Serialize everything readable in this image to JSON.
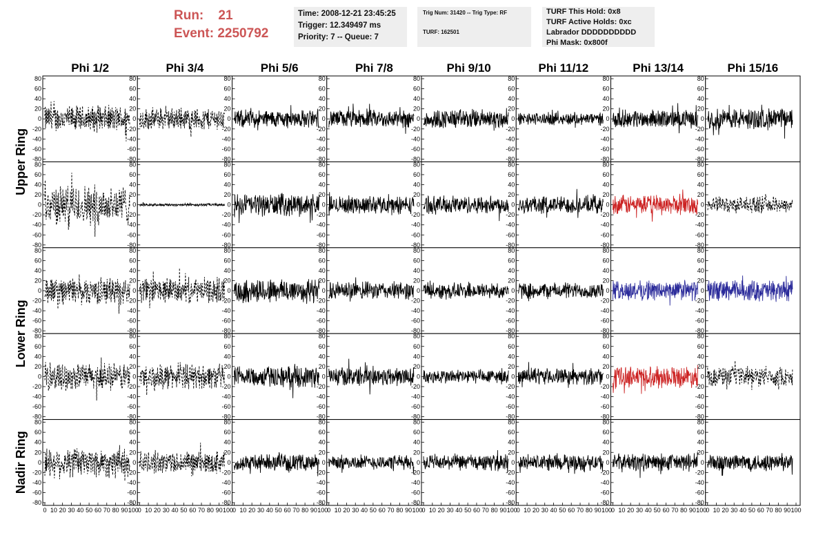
{
  "run": {
    "run_label": "Run:",
    "run_value": "21",
    "event_label": "Event:",
    "event_value": "2250792"
  },
  "info_box_1": {
    "time": "Time: 2008-12-21 23:45:25",
    "trigger": "Trigger: 12.349497 ms",
    "priority": "Priority: 7 -- Queue: 7"
  },
  "info_box_2": {
    "trig": "Trig Num: 31420 -- Trig Type: RF",
    "turf": "TURF: 162501"
  },
  "info_box_3": {
    "hold": "TURF This Hold: 0x8",
    "active": "TURF Active Holds: 0xc",
    "labrador": "Labrador DDDDDDDDDD",
    "phimask": "Phi Mask: 0x800f"
  },
  "colors": {
    "normal": "#000000",
    "red": "#cc2222",
    "blue": "#2a2a9a",
    "axis": "#000000",
    "panel_bg": "#ffffff"
  },
  "chart_data": {
    "type": "line",
    "columns": [
      "Phi 1/2",
      "Phi 3/4",
      "Phi 5/6",
      "Phi 7/8",
      "Phi 9/10",
      "Phi 11/12",
      "Phi 13/14",
      "Phi 15/16"
    ],
    "row_groups": [
      "Upper Ring",
      "Lower Ring",
      "Nadir Ring"
    ],
    "xlim": [
      0,
      100
    ],
    "ylim": [
      -80,
      80
    ],
    "x_ticks": [
      "0",
      "10",
      "20",
      "30",
      "40",
      "50",
      "60",
      "70",
      "80",
      "90",
      "100"
    ],
    "y_ticks": [
      "80",
      "60",
      "40",
      "20",
      "0",
      "-20",
      "-40",
      "-60",
      "-80"
    ],
    "rows": [
      {
        "group": "Upper Ring",
        "panels": [
          {
            "style": "dashed",
            "color": "normal",
            "amplitude": 30
          },
          {
            "style": "dashed",
            "color": "normal",
            "amplitude": 25
          },
          {
            "style": "solid",
            "color": "normal",
            "amplitude": 20
          },
          {
            "style": "solid",
            "color": "normal",
            "amplitude": 20
          },
          {
            "style": "solid",
            "color": "normal",
            "amplitude": 22
          },
          {
            "style": "solid",
            "color": "normal",
            "amplitude": 14
          },
          {
            "style": "solid",
            "color": "normal",
            "amplitude": 20
          },
          {
            "style": "solid",
            "color": "normal",
            "amplitude": 24
          }
        ]
      },
      {
        "group": "Upper Ring",
        "panels": [
          {
            "style": "dashed",
            "color": "normal",
            "amplitude": 45
          },
          {
            "style": "solid",
            "color": "normal",
            "amplitude": 3
          },
          {
            "style": "solid",
            "color": "normal",
            "amplitude": 25
          },
          {
            "style": "solid",
            "color": "normal",
            "amplitude": 20
          },
          {
            "style": "solid",
            "color": "normal",
            "amplitude": 20
          },
          {
            "style": "solid",
            "color": "normal",
            "amplitude": 20
          },
          {
            "style": "solid",
            "color": "red",
            "amplitude": 22
          },
          {
            "style": "dashed",
            "color": "normal",
            "amplitude": 18
          }
        ]
      },
      {
        "group": "Lower Ring",
        "panels": [
          {
            "style": "dashed",
            "color": "normal",
            "amplitude": 30
          },
          {
            "style": "dashed",
            "color": "normal",
            "amplitude": 28
          },
          {
            "style": "solid",
            "color": "normal",
            "amplitude": 28
          },
          {
            "style": "solid",
            "color": "normal",
            "amplitude": 20
          },
          {
            "style": "solid",
            "color": "normal",
            "amplitude": 18
          },
          {
            "style": "solid",
            "color": "normal",
            "amplitude": 18
          },
          {
            "style": "solid",
            "color": "blue",
            "amplitude": 22
          },
          {
            "style": "solid",
            "color": "blue",
            "amplitude": 24
          }
        ]
      },
      {
        "group": "Lower Ring",
        "panels": [
          {
            "style": "dashed",
            "color": "normal",
            "amplitude": 30
          },
          {
            "style": "dashed",
            "color": "normal",
            "amplitude": 28
          },
          {
            "style": "solid",
            "color": "normal",
            "amplitude": 24
          },
          {
            "style": "solid",
            "color": "normal",
            "amplitude": 22
          },
          {
            "style": "solid",
            "color": "normal",
            "amplitude": 16
          },
          {
            "style": "solid",
            "color": "normal",
            "amplitude": 18
          },
          {
            "style": "solid",
            "color": "red",
            "amplitude": 24
          },
          {
            "style": "dashed",
            "color": "normal",
            "amplitude": 22
          }
        ]
      },
      {
        "group": "Nadir Ring",
        "panels": [
          {
            "style": "dashed",
            "color": "normal",
            "amplitude": 35
          },
          {
            "style": "dashed",
            "color": "normal",
            "amplitude": 25
          },
          {
            "style": "solid",
            "color": "normal",
            "amplitude": 18
          },
          {
            "style": "solid",
            "color": "normal",
            "amplitude": 16
          },
          {
            "style": "solid",
            "color": "normal",
            "amplitude": 18
          },
          {
            "style": "solid",
            "color": "normal",
            "amplitude": 18
          },
          {
            "style": "solid",
            "color": "normal",
            "amplitude": 20
          },
          {
            "style": "solid",
            "color": "normal",
            "amplitude": 20
          }
        ]
      }
    ]
  }
}
